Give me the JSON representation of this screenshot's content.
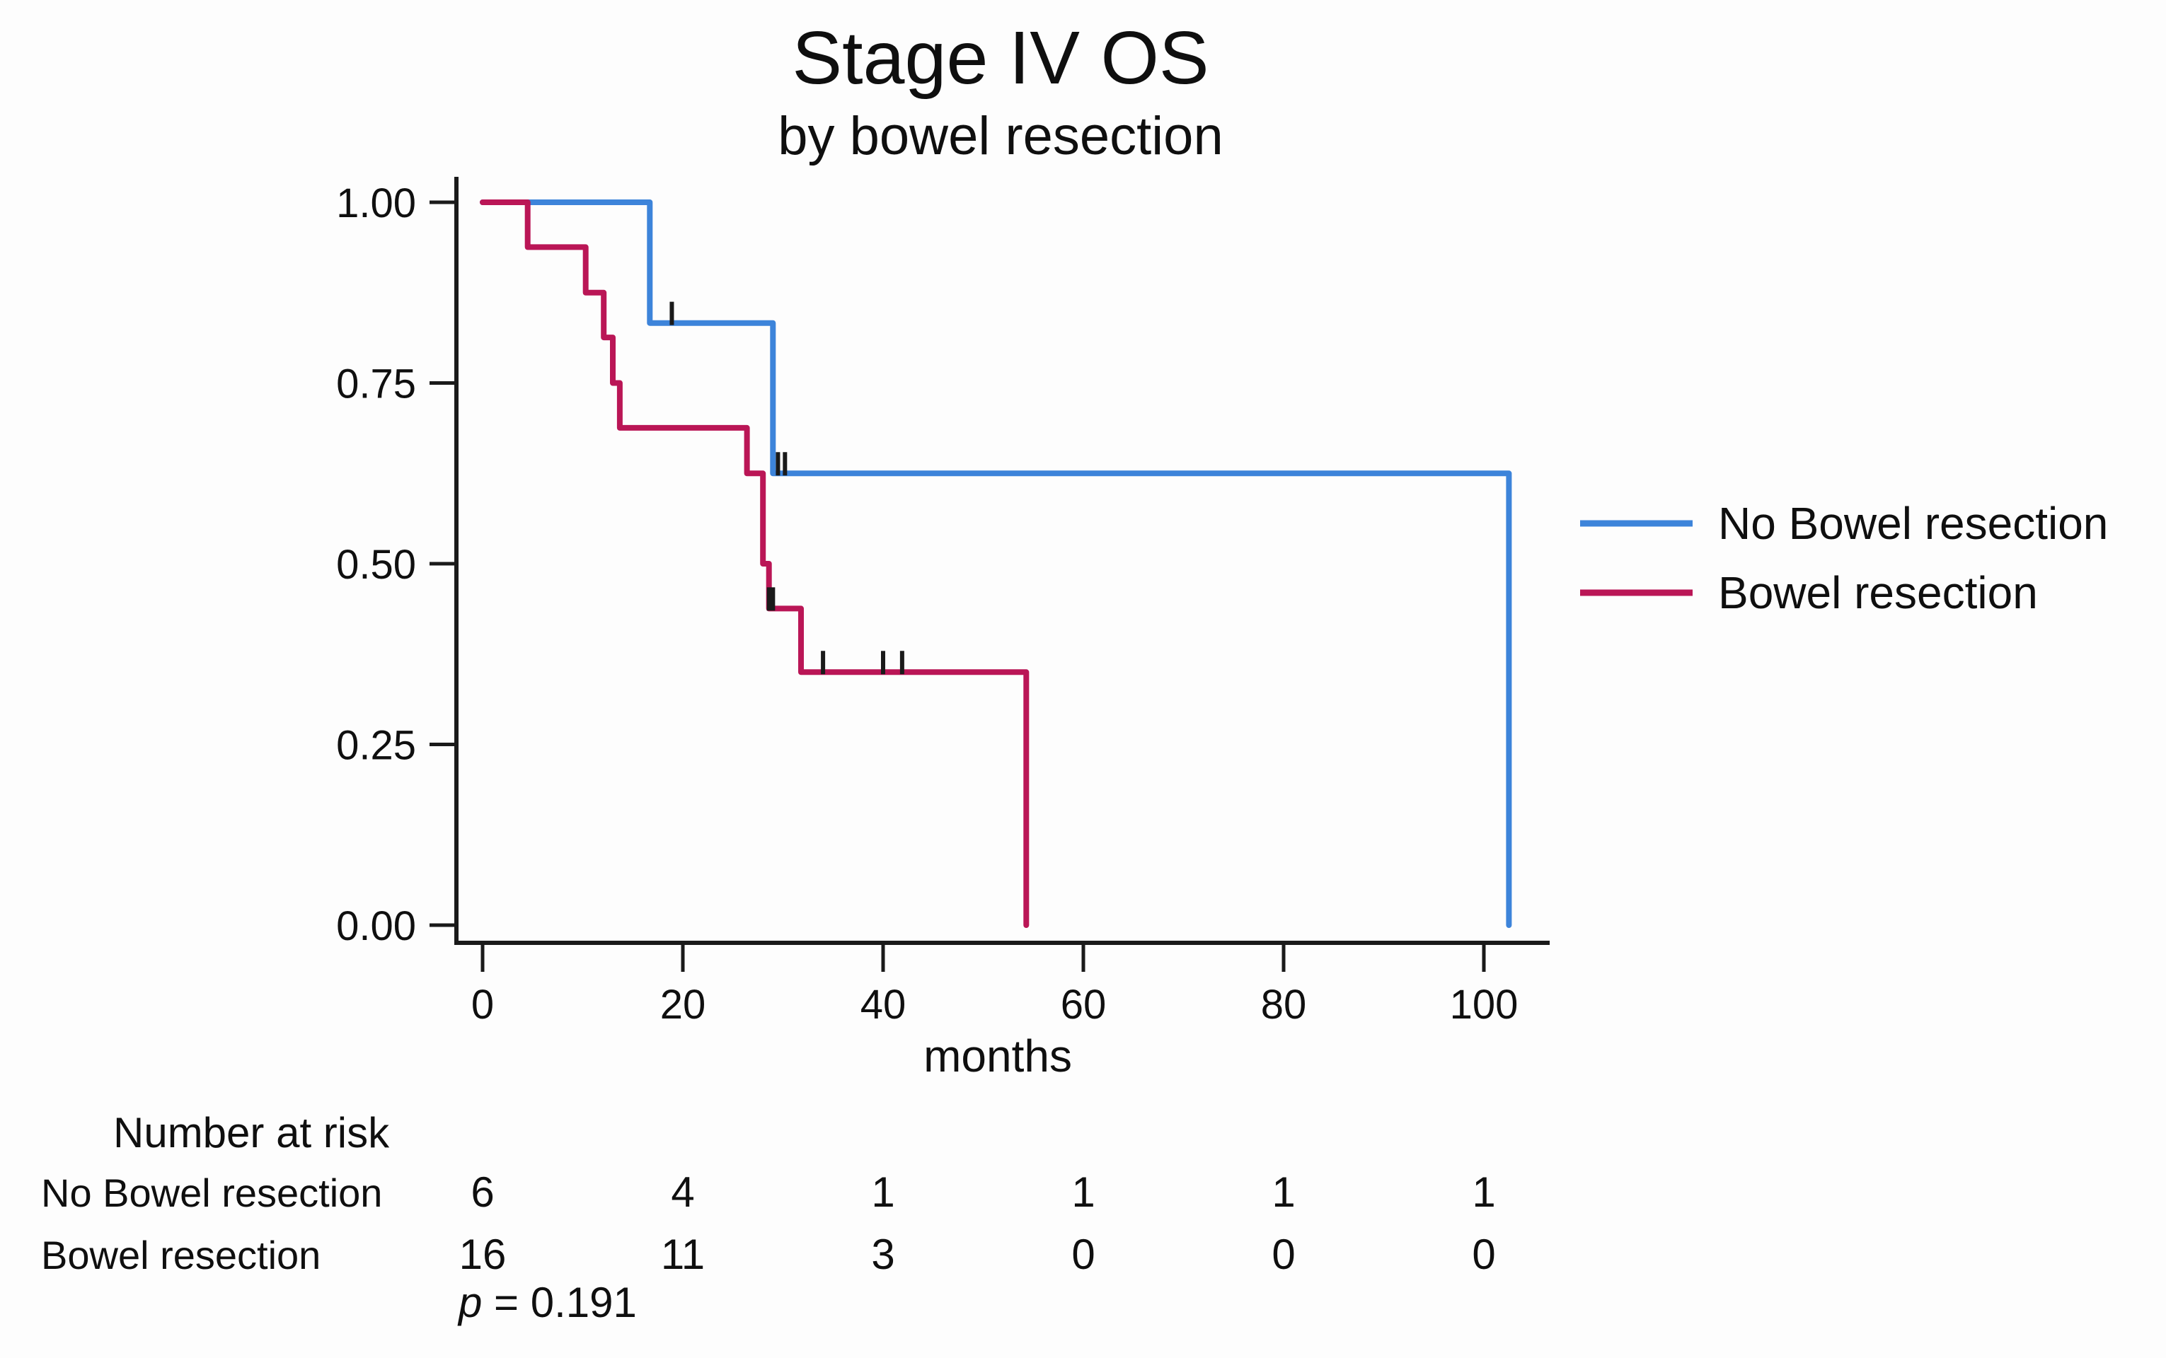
{
  "chart_data": {
    "type": "line",
    "variant": "kaplan-meier-step",
    "title": "Stage IV OS",
    "subtitle": "by bowel resection",
    "xlabel": "months",
    "ylabel": "",
    "xlim": [
      0,
      106
    ],
    "ylim": [
      0,
      1
    ],
    "grid": "off",
    "legend_position": "right",
    "xticks": [
      0,
      20,
      40,
      60,
      80,
      100
    ],
    "yticks": [
      {
        "v": 1.0,
        "label": "1.00"
      },
      {
        "v": 0.75,
        "label": "0.75"
      },
      {
        "v": 0.5,
        "label": "0.50"
      },
      {
        "v": 0.25,
        "label": "0.25"
      },
      {
        "v": 0.0,
        "label": "0.00"
      }
    ],
    "axis_color": "#1a1a1a",
    "censor_color": "#1a1a1a",
    "series": [
      {
        "name": "No Bowel resection",
        "color": "#3d84da",
        "points": [
          [
            0,
            1.0
          ],
          [
            16.7,
            1.0
          ],
          [
            16.7,
            0.833
          ],
          [
            29.0,
            0.833
          ],
          [
            29.0,
            0.625
          ],
          [
            102.5,
            0.625
          ],
          [
            102.5,
            0.0
          ]
        ],
        "censors": [
          [
            18.9,
            0.833
          ],
          [
            29.5,
            0.625
          ],
          [
            30.2,
            0.625
          ]
        ]
      },
      {
        "name": "Bowel resection",
        "color": "#ba1656",
        "points": [
          [
            0,
            1.0
          ],
          [
            4.5,
            1.0
          ],
          [
            4.5,
            0.938
          ],
          [
            10.3,
            0.938
          ],
          [
            10.3,
            0.875
          ],
          [
            12.1,
            0.875
          ],
          [
            12.1,
            0.813
          ],
          [
            13.0,
            0.813
          ],
          [
            13.0,
            0.75
          ],
          [
            13.7,
            0.75
          ],
          [
            13.7,
            0.688
          ],
          [
            26.4,
            0.688
          ],
          [
            26.4,
            0.625
          ],
          [
            28.0,
            0.625
          ],
          [
            28.0,
            0.5
          ],
          [
            28.6,
            0.5
          ],
          [
            28.6,
            0.438
          ],
          [
            31.8,
            0.438
          ],
          [
            31.8,
            0.35
          ],
          [
            54.3,
            0.35
          ],
          [
            54.3,
            0.0
          ]
        ],
        "censors": [
          [
            28.6,
            0.438
          ],
          [
            29.0,
            0.438
          ],
          [
            34.0,
            0.35
          ],
          [
            40.0,
            0.35
          ],
          [
            41.9,
            0.35
          ]
        ]
      }
    ]
  },
  "risk_table": {
    "header": "Number at risk",
    "columns_months": [
      0,
      20,
      40,
      60,
      80,
      100
    ],
    "rows": [
      {
        "label": "No Bowel resection",
        "values": [
          "6",
          "4",
          "1",
          "1",
          "1",
          "1"
        ]
      },
      {
        "label": "Bowel resection",
        "values": [
          "16",
          "11",
          "3",
          "0",
          "0",
          "0"
        ]
      }
    ]
  },
  "stats": {
    "p_symbol": "p",
    "p_text": " = 0.191"
  }
}
